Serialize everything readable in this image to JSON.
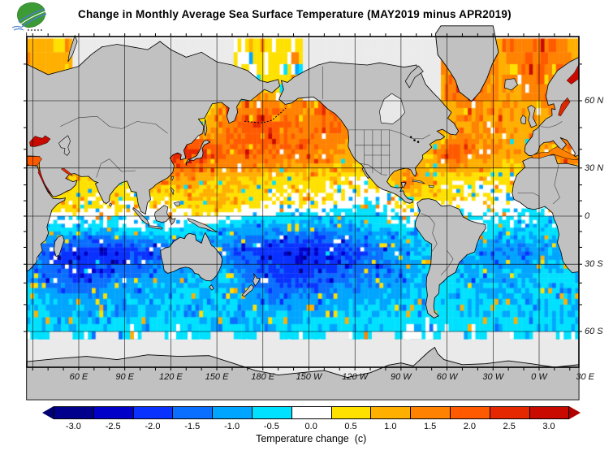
{
  "header": {
    "title": "Change in Monthly Average Sea Surface Temperature (MAY2019 minus APR2019)"
  },
  "logo": {
    "icon": "leaf-with-waves-logo"
  },
  "map": {
    "lat_labels": [
      {
        "text": "60 N",
        "lat": 60
      },
      {
        "text": "30 N",
        "lat": 30
      },
      {
        "text": "0",
        "lat": 0
      },
      {
        "text": "30 S",
        "lat": -30
      },
      {
        "text": "60 S",
        "lat": -60
      }
    ],
    "lon_labels": [
      {
        "text": "60 E",
        "e": 60
      },
      {
        "text": "90 E",
        "e": 90
      },
      {
        "text": "120 E",
        "e": 120
      },
      {
        "text": "150 E",
        "e": 150
      },
      {
        "text": "180 E",
        "e": 180
      },
      {
        "text": "150 W",
        "e": 210
      },
      {
        "text": "120 W",
        "e": 240
      },
      {
        "text": "90 W",
        "e": 270
      },
      {
        "text": "60 W",
        "e": 300
      },
      {
        "text": "30 W",
        "e": 330
      },
      {
        "text": "0 W",
        "e": 360
      },
      {
        "text": "30 E",
        "e": 390
      }
    ]
  },
  "colorbar": {
    "caption": "Temperature change  (c)",
    "tick_labels": [
      "-3.0",
      "-2.5",
      "-2.0",
      "-1.5",
      "-1.0",
      "-0.5",
      "0.0",
      "0.5",
      "1.0",
      "1.5",
      "2.0",
      "2.5",
      "3.0"
    ],
    "below_color": "#000072",
    "above_color": "#AF0000",
    "colors": [
      "#00008C",
      "#0000C8",
      "#0A32FF",
      "#0A6EFF",
      "#00A5FF",
      "#00E1FF",
      "#FFFFFF",
      "#FFE100",
      "#FFAF00",
      "#FF8200",
      "#FF5A00",
      "#E62800",
      "#C80A00"
    ]
  },
  "chart_data": {
    "type": "heatmap",
    "title": "Change in Monthly Average Sea Surface Temperature (MAY2019 minus APR2019)",
    "units": "C",
    "projection": "mercator",
    "lon_left_edge_deg_east": 26,
    "lon_cell_deg": 15,
    "lat_row_centers": [
      67.5,
      52.5,
      37.5,
      22.5,
      7.5,
      -7.5,
      -22.5,
      -37.5,
      -52.5,
      -67.5
    ],
    "lon_col_centers_deg_east": [
      33.5,
      48.5,
      63.5,
      78.5,
      93.5,
      108.5,
      123.5,
      138.5,
      153.5,
      168.5,
      183.5,
      198.5,
      213.5,
      228.5,
      243.5,
      258.5,
      273.5,
      288.5,
      303.5,
      318.5,
      333.5,
      348.5,
      363.5,
      378.5
    ],
    "levels": [
      -3.0,
      -2.5,
      -2.0,
      -1.5,
      -1.0,
      -0.5,
      0.0,
      0.5,
      1.0,
      1.5,
      2.0,
      2.5,
      3.0
    ],
    "values": [
      [
        0.8,
        0.7,
        null,
        null,
        null,
        null,
        null,
        null,
        null,
        0.2,
        0.3,
        0.4,
        null,
        null,
        null,
        null,
        null,
        null,
        1.5,
        1.8,
        1.2,
        1.5,
        1.8,
        1.5
      ],
      [
        0.5,
        0.5,
        0.5,
        0.5,
        0.5,
        0.5,
        0.5,
        0.4,
        1.2,
        2.0,
        2.2,
        1.8,
        1.5,
        2.0,
        0.8,
        0.8,
        0.8,
        0.8,
        1.0,
        1.3,
        1.2,
        1.0,
        1.2,
        2.0
      ],
      [
        1.0,
        0.9,
        0.8,
        0.8,
        0.8,
        1.0,
        2.8,
        2.5,
        2.0,
        1.8,
        1.7,
        1.6,
        1.5,
        1.3,
        1.0,
        0.8,
        0.8,
        0.8,
        2.2,
        1.5,
        1.2,
        1.0,
        1.2,
        1.5
      ],
      [
        2.0,
        0.6,
        0.6,
        0.5,
        0.5,
        0.8,
        1.0,
        0.8,
        0.7,
        0.6,
        0.6,
        0.5,
        0.5,
        0.4,
        0.3,
        0.3,
        1.5,
        0.8,
        0.4,
        0.3,
        0.4,
        0.3,
        0.4,
        0.4
      ],
      [
        0.5,
        0.5,
        0.4,
        0.4,
        0.3,
        0.2,
        0.3,
        0.8,
        0.8,
        0.5,
        0.3,
        0.2,
        0.2,
        0.1,
        -0.2,
        -0.3,
        0.3,
        0.4,
        0.1,
        0.0,
        0.1,
        0.0,
        0.0,
        0.2
      ],
      [
        -0.2,
        -0.3,
        -0.5,
        -0.5,
        -0.4,
        -0.2,
        -0.2,
        -0.4,
        -0.7,
        -0.9,
        -1.0,
        -1.0,
        -1.1,
        -1.0,
        -0.8,
        -0.6,
        -0.5,
        -0.3,
        -0.3,
        -0.2,
        -0.4,
        -0.5,
        -0.6,
        -0.3
      ],
      [
        -1.5,
        -2.0,
        -2.2,
        -2.3,
        -2.0,
        -1.8,
        -1.5,
        -1.2,
        -1.5,
        -1.8,
        -2.0,
        -2.2,
        -2.3,
        -2.0,
        -1.7,
        -1.3,
        -1.0,
        -0.8,
        -0.8,
        -1.0,
        -1.2,
        -1.3,
        -1.0,
        -0.8
      ],
      [
        -1.2,
        -1.5,
        -1.8,
        -1.5,
        -1.2,
        -1.0,
        -0.9,
        -0.6,
        -0.8,
        -1.2,
        -1.8,
        -2.0,
        -1.8,
        -1.5,
        -1.3,
        -1.2,
        -1.0,
        -0.8,
        -0.6,
        -0.8,
        -0.9,
        -0.8,
        -0.6,
        -0.5
      ],
      [
        -0.7,
        -0.8,
        -0.7,
        -0.8,
        -0.7,
        -0.6,
        -0.7,
        -0.8,
        -0.7,
        -0.8,
        -0.9,
        -0.8,
        -0.8,
        -0.7,
        -0.8,
        -0.7,
        -0.6,
        -0.5,
        -0.6,
        -0.7,
        -0.7,
        -0.6,
        -0.7,
        -0.7
      ],
      [
        -0.2,
        null,
        -0.1,
        null,
        -0.2,
        null,
        -0.1,
        -0.2,
        null,
        -0.1,
        null,
        -0.2,
        -0.1,
        null,
        -0.1,
        null,
        -0.2,
        -0.1,
        null,
        -0.1,
        null,
        -0.1,
        null,
        -0.1
      ]
    ]
  }
}
